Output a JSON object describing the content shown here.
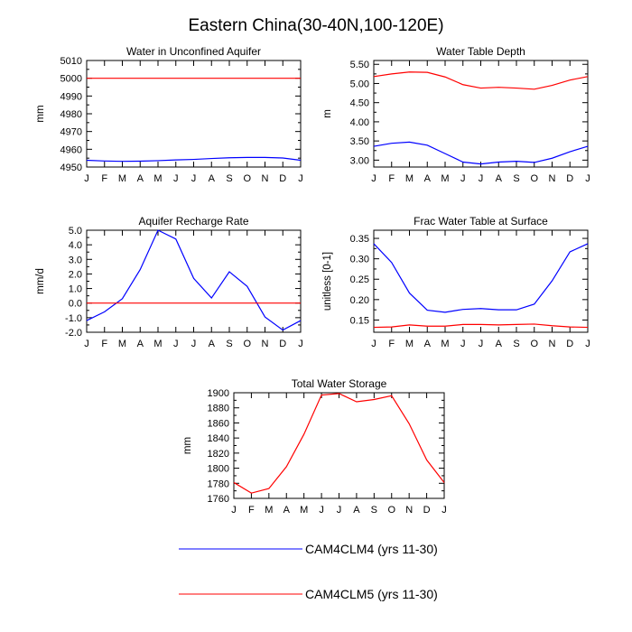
{
  "title": "Eastern China(30-40N,100-120E)",
  "colors": {
    "series_a": "#0000ff",
    "series_b": "#ff0000",
    "axis": "#000000"
  },
  "legend": [
    {
      "key": "a",
      "label": "CAM4CLM4 (yrs 11-30)"
    },
    {
      "key": "b",
      "label": "CAM4CLM5 (yrs 11-30)"
    }
  ],
  "chart_data": [
    {
      "type": "line",
      "title": "Water in Unconfined Aquifer",
      "xlabel": "",
      "ylabel": "mm",
      "categories": [
        "J",
        "F",
        "M",
        "A",
        "M",
        "J",
        "J",
        "A",
        "S",
        "O",
        "N",
        "D",
        "J"
      ],
      "ylim": [
        4950,
        5010
      ],
      "yticks": [
        4950,
        4960,
        4970,
        4980,
        4990,
        5000,
        5010
      ],
      "ytick_labels": [
        "4950",
        "4960",
        "4970",
        "4980",
        "4990",
        "5000",
        "5010"
      ],
      "series": [
        {
          "name": "CAM4CLM4 (yrs 11-30)",
          "key": "a",
          "values": [
            4953.8,
            4953.4,
            4953.2,
            4953.3,
            4953.6,
            4954.0,
            4954.3,
            4954.8,
            4955.2,
            4955.4,
            4955.4,
            4955.1,
            4953.8
          ]
        },
        {
          "name": "CAM4CLM5 (yrs 11-30)",
          "key": "b",
          "values": [
            5000,
            5000,
            5000,
            5000,
            5000,
            5000,
            5000,
            5000,
            5000,
            5000,
            5000,
            5000,
            5000
          ]
        }
      ]
    },
    {
      "type": "line",
      "title": "Water Table Depth",
      "xlabel": "",
      "ylabel": "m",
      "categories": [
        "J",
        "F",
        "M",
        "A",
        "M",
        "J",
        "J",
        "A",
        "S",
        "O",
        "N",
        "D",
        "J"
      ],
      "ylim": [
        2.82,
        5.6
      ],
      "yticks": [
        3.0,
        3.5,
        4.0,
        4.5,
        5.0,
        5.5
      ],
      "ytick_labels": [
        "3.00",
        "3.50",
        "4.00",
        "4.50",
        "5.00",
        "5.50"
      ],
      "series": [
        {
          "name": "CAM4CLM4 (yrs 11-30)",
          "key": "a",
          "values": [
            3.36,
            3.44,
            3.47,
            3.39,
            3.17,
            2.95,
            2.9,
            2.95,
            2.97,
            2.94,
            3.05,
            3.22,
            3.36
          ]
        },
        {
          "name": "CAM4CLM5 (yrs 11-30)",
          "key": "b",
          "values": [
            5.18,
            5.25,
            5.3,
            5.29,
            5.17,
            4.97,
            4.88,
            4.9,
            4.88,
            4.85,
            4.95,
            5.09,
            5.18
          ]
        }
      ]
    },
    {
      "type": "line",
      "title": "Aquifer Recharge Rate",
      "xlabel": "",
      "ylabel": "mm/d",
      "categories": [
        "J",
        "F",
        "M",
        "A",
        "M",
        "J",
        "J",
        "A",
        "S",
        "O",
        "N",
        "D",
        "J"
      ],
      "ylim": [
        -2.0,
        5.0
      ],
      "yticks": [
        -2,
        -1,
        0,
        1,
        2,
        3,
        4,
        5
      ],
      "ytick_labels": [
        "-2.0",
        "-1.0",
        "0.0",
        "1.0",
        "2.0",
        "3.0",
        "4.0",
        "5.0"
      ],
      "series": [
        {
          "name": "CAM4CLM4 (yrs 11-30)",
          "key": "a",
          "values": [
            -1.2,
            -0.6,
            0.3,
            2.3,
            5.0,
            4.4,
            1.7,
            0.35,
            2.15,
            1.15,
            -0.95,
            -1.85,
            -1.2
          ]
        },
        {
          "name": "CAM4CLM5 (yrs 11-30)",
          "key": "b",
          "values": [
            0,
            0,
            0,
            0,
            0,
            0,
            0,
            0,
            0,
            0,
            0,
            0,
            0
          ]
        }
      ]
    },
    {
      "type": "line",
      "title": "Frac Water Table at Surface",
      "xlabel": "",
      "ylabel": "unitless [0-1]",
      "categories": [
        "J",
        "F",
        "M",
        "A",
        "M",
        "J",
        "J",
        "A",
        "S",
        "O",
        "N",
        "D",
        "J"
      ],
      "ylim": [
        0.12,
        0.37
      ],
      "yticks": [
        0.15,
        0.2,
        0.25,
        0.3,
        0.35
      ],
      "ytick_labels": [
        "0.15",
        "0.20",
        "0.25",
        "0.30",
        "0.35"
      ],
      "series": [
        {
          "name": "CAM4CLM4 (yrs 11-30)",
          "key": "a",
          "values": [
            0.337,
            0.291,
            0.216,
            0.174,
            0.169,
            0.176,
            0.178,
            0.175,
            0.175,
            0.189,
            0.246,
            0.317,
            0.337
          ]
        },
        {
          "name": "CAM4CLM5 (yrs 11-30)",
          "key": "b",
          "values": [
            0.132,
            0.133,
            0.138,
            0.135,
            0.135,
            0.139,
            0.139,
            0.138,
            0.139,
            0.14,
            0.136,
            0.133,
            0.132
          ]
        }
      ]
    },
    {
      "type": "line",
      "title": "Total Water Storage",
      "xlabel": "",
      "ylabel": "mm",
      "categories": [
        "J",
        "F",
        "M",
        "A",
        "M",
        "J",
        "J",
        "A",
        "S",
        "O",
        "N",
        "D",
        "J"
      ],
      "ylim": [
        1760,
        1900
      ],
      "yticks": [
        1760,
        1780,
        1800,
        1820,
        1840,
        1860,
        1880,
        1900
      ],
      "ytick_labels": [
        "1760",
        "1780",
        "1800",
        "1820",
        "1840",
        "1860",
        "1880",
        "1900"
      ],
      "series": [
        {
          "name": "CAM4CLM5 (yrs 11-30)",
          "key": "b",
          "values": [
            1781,
            1767,
            1773,
            1802,
            1845,
            1897,
            1899,
            1888,
            1891,
            1896,
            1859,
            1811,
            1781
          ]
        }
      ]
    }
  ]
}
